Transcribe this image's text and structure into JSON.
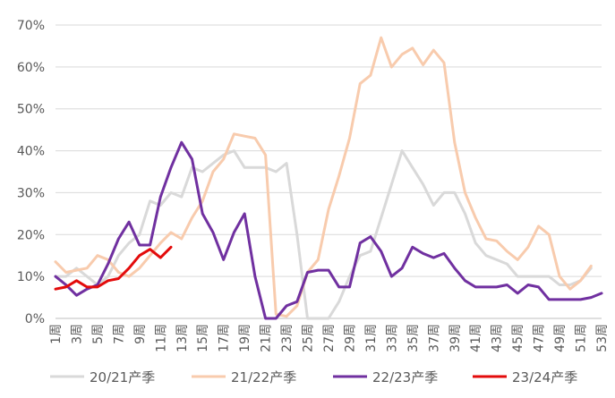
{
  "chart_data": {
    "type": "line",
    "title": "",
    "xlabel": "",
    "ylabel": "",
    "ylim": [
      0,
      70
    ],
    "yticks": [
      0,
      10,
      20,
      30,
      40,
      50,
      60,
      70
    ],
    "ytick_labels": [
      "0%",
      "10%",
      "20%",
      "30%",
      "40%",
      "50%",
      "60%",
      "70%"
    ],
    "grid": true,
    "legend_position": "bottom",
    "x": [
      1,
      2,
      3,
      4,
      5,
      6,
      7,
      8,
      9,
      10,
      11,
      12,
      13,
      14,
      15,
      16,
      17,
      18,
      19,
      20,
      21,
      22,
      23,
      24,
      25,
      26,
      27,
      28,
      29,
      30,
      31,
      32,
      33,
      34,
      35,
      36,
      37,
      38,
      39,
      40,
      41,
      42,
      43,
      44,
      45,
      46,
      47,
      48,
      49,
      50,
      51,
      52,
      53
    ],
    "xtick_labels": [
      "1周",
      "3周",
      "5周",
      "7周",
      "9周",
      "11周",
      "13周",
      "15周",
      "17周",
      "19周",
      "21周",
      "23周",
      "25周",
      "27周",
      "29周",
      "31周",
      "33周",
      "35周",
      "37周",
      "39周",
      "41周",
      "43周",
      "45周",
      "47周",
      "49周",
      "51周",
      "53周"
    ],
    "series": [
      {
        "name": "20/21产季",
        "color": "#d9d9d9",
        "values": [
          10,
          10,
          12,
          10,
          8,
          10,
          15,
          18,
          20,
          28,
          27,
          30,
          29,
          36,
          35,
          37,
          39,
          40,
          36,
          36,
          36,
          35,
          37,
          20,
          0,
          0,
          0,
          4,
          10,
          15,
          16,
          24,
          32,
          40,
          36,
          32,
          27,
          30,
          30,
          25,
          18,
          15,
          14,
          13,
          10,
          10,
          10,
          10,
          8,
          8,
          9,
          12,
          null
        ]
      },
      {
        "name": "21/22产季",
        "color": "#f8cbad",
        "values": [
          13.5,
          11,
          11.5,
          12,
          15,
          14,
          11,
          10,
          12,
          15,
          18,
          20.5,
          19,
          24,
          28,
          35,
          38,
          44,
          43.5,
          43,
          39,
          1,
          0.5,
          3,
          11,
          14,
          26,
          34,
          43,
          56,
          58,
          67,
          60,
          63,
          64.5,
          60.5,
          64,
          61,
          42,
          30,
          24,
          19,
          18.5,
          16,
          14,
          17,
          22,
          20,
          10,
          7,
          9,
          12.5,
          null
        ]
      },
      {
        "name": "22/23产季",
        "color": "#7030a0",
        "values": [
          10,
          8,
          5.5,
          7,
          8,
          13,
          19,
          23,
          17.5,
          17.5,
          29,
          36,
          42,
          38,
          25,
          20.5,
          14,
          20.5,
          25,
          10,
          0,
          0,
          3,
          4,
          11,
          11.5,
          11.5,
          7.5,
          7.5,
          18,
          19.5,
          16,
          10,
          12,
          17,
          15.5,
          14.5,
          15.5,
          12,
          9,
          7.5,
          7.5,
          7.5,
          8,
          6,
          8,
          7.5,
          4.5,
          4.5,
          4.5,
          4.5,
          5,
          6
        ]
      },
      {
        "name": "23/24产季",
        "color": "#e30b0b",
        "values": [
          7,
          7.5,
          9,
          7.5,
          7.5,
          9,
          9.5,
          12,
          15,
          16.5,
          14.5,
          17,
          null,
          null,
          null,
          null,
          null,
          null,
          null,
          null,
          null,
          null,
          null,
          null,
          null,
          null,
          null,
          null,
          null,
          null,
          null,
          null,
          null,
          null,
          null,
          null,
          null,
          null,
          null,
          null,
          null,
          null,
          null,
          null,
          null,
          null,
          null,
          null,
          null,
          null,
          null,
          null,
          null
        ]
      }
    ]
  }
}
